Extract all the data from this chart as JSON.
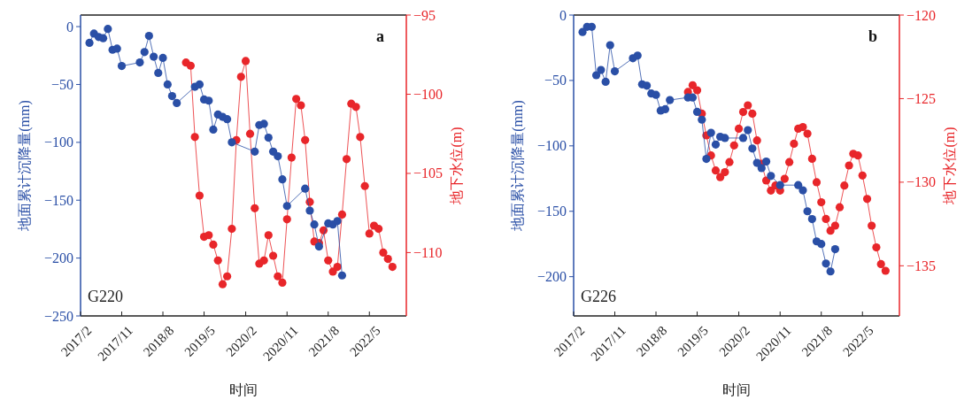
{
  "chart_data": [
    {
      "type": "line",
      "xlabel": "时间",
      "ylabel": "地面累计沉降量(mm)",
      "y2label": "地下水位(m)",
      "annotations": [
        "a",
        "G220"
      ],
      "marker": "circle",
      "line_style": "solid",
      "xlim": [
        "2017-02",
        "2023-01"
      ],
      "xticks": [
        {
          "value": "2017-02",
          "label": "2017/2"
        },
        {
          "value": "2017-11",
          "label": "2017/11"
        },
        {
          "value": "2018-08",
          "label": "2018/8"
        },
        {
          "value": "2019-05",
          "label": "2019/5"
        },
        {
          "value": "2020-02",
          "label": "2020/2"
        },
        {
          "value": "2020-11",
          "label": "2020/11"
        },
        {
          "value": "2021-08",
          "label": "2021/8"
        },
        {
          "value": "2022-05",
          "label": "2022/5"
        }
      ],
      "ylim": [
        -250,
        10
      ],
      "yticks": [
        -250,
        -200,
        -150,
        -100,
        -50,
        0
      ],
      "y2lim": [
        -114,
        -95
      ],
      "y2ticks": [
        -110,
        -105,
        -100,
        -95
      ],
      "series": [
        {
          "color": "#2a4fa6",
          "x": [
            "2017-04",
            "2017-05",
            "2017-06",
            "2017-07",
            "2017-08",
            "2017-09",
            "2017-10",
            "2017-11",
            "2018-03",
            "2018-04",
            "2018-05",
            "2018-06",
            "2018-07",
            "2018-08",
            "2018-09",
            "2018-10",
            "2018-11",
            "2019-03",
            "2019-04",
            "2019-05",
            "2019-06",
            "2019-07",
            "2019-08",
            "2019-09",
            "2019-10",
            "2019-11",
            "2020-04",
            "2020-05",
            "2020-06",
            "2020-07",
            "2020-08",
            "2020-09",
            "2020-10",
            "2020-11",
            "2021-03",
            "2021-04",
            "2021-05",
            "2021-06",
            "2021-08",
            "2021-09",
            "2021-10",
            "2021-11"
          ],
          "values": [
            -14,
            -6,
            -9,
            -10,
            -2,
            -20,
            -19,
            -34,
            -31,
            -22,
            -8,
            -26,
            -40,
            -27,
            -50,
            -60,
            -66,
            -52,
            -50,
            -63,
            -64,
            -89,
            -76,
            -78,
            -80,
            -100,
            -108,
            -85,
            -84,
            -96,
            -108,
            -112,
            -132,
            -155,
            -140,
            -159,
            -171,
            -190,
            -170,
            -171,
            -168,
            -215
          ]
        },
        {
          "color": "#e8262a",
          "axis": "y2",
          "x": [
            "2019-01",
            "2019-02",
            "2019-03",
            "2019-04",
            "2019-05",
            "2019-06",
            "2019-07",
            "2019-08",
            "2019-09",
            "2019-10",
            "2019-11",
            "2019-12",
            "2020-01",
            "2020-02",
            "2020-03",
            "2020-04",
            "2020-05",
            "2020-06",
            "2020-07",
            "2020-08",
            "2020-09",
            "2020-10",
            "2020-11",
            "2020-12",
            "2021-01",
            "2021-02",
            "2021-03",
            "2021-04",
            "2021-05",
            "2021-06",
            "2021-07",
            "2021-08",
            "2021-09",
            "2021-10",
            "2021-11",
            "2021-12",
            "2022-01",
            "2022-02",
            "2022-03",
            "2022-04",
            "2022-05",
            "2022-06",
            "2022-07",
            "2022-08",
            "2022-09",
            "2022-10"
          ],
          "values": [
            -98.0,
            -98.2,
            -102.7,
            -106.4,
            -109.0,
            -108.9,
            -109.5,
            -110.5,
            -112.0,
            -111.5,
            -108.5,
            -102.9,
            -98.9,
            -97.9,
            -102.5,
            -107.2,
            -110.7,
            -110.5,
            -108.9,
            -110.2,
            -111.5,
            -111.9,
            -107.9,
            -104.0,
            -100.3,
            -100.7,
            -102.9,
            -106.8,
            -109.3,
            -109.4,
            -108.6,
            -110.5,
            -111.2,
            -110.9,
            -107.6,
            -104.1,
            -100.6,
            -100.8,
            -102.7,
            -105.8,
            -108.8,
            -108.3,
            -108.5,
            -110.0,
            -110.4,
            -110.9
          ]
        }
      ]
    },
    {
      "type": "line",
      "xlabel": "时间",
      "ylabel": "地面累计沉降量(mm)",
      "y2label": "地下水位(m)",
      "annotations": [
        "b",
        "G226"
      ],
      "marker": "circle",
      "line_style": "solid",
      "xlim": [
        "2017-02",
        "2023-01"
      ],
      "xticks": [
        {
          "value": "2017-02",
          "label": "2017/2"
        },
        {
          "value": "2017-11",
          "label": "2017/11"
        },
        {
          "value": "2018-08",
          "label": "2018/8"
        },
        {
          "value": "2019-05",
          "label": "2019/5"
        },
        {
          "value": "2020-02",
          "label": "2020/2"
        },
        {
          "value": "2020-11",
          "label": "2020/11"
        },
        {
          "value": "2021-08",
          "label": "2021/8"
        },
        {
          "value": "2022-05",
          "label": "2022/5"
        }
      ],
      "ylim": [
        -230,
        0
      ],
      "yticks": [
        -200,
        -150,
        -100,
        -50,
        0
      ],
      "y2lim": [
        -138,
        -120
      ],
      "y2ticks": [
        -135,
        -130,
        -125,
        -120
      ],
      "series": [
        {
          "color": "#2a4fa6",
          "x": [
            "2017-04",
            "2017-05",
            "2017-06",
            "2017-07",
            "2017-08",
            "2017-09",
            "2017-10",
            "2017-11",
            "2018-03",
            "2018-04",
            "2018-05",
            "2018-06",
            "2018-07",
            "2018-08",
            "2018-09",
            "2018-10",
            "2018-11",
            "2019-03",
            "2019-04",
            "2019-05",
            "2019-06",
            "2019-07",
            "2019-08",
            "2019-09",
            "2019-10",
            "2019-11",
            "2020-03",
            "2020-04",
            "2020-05",
            "2020-06",
            "2020-07",
            "2020-08",
            "2020-09",
            "2020-11",
            "2021-03",
            "2021-04",
            "2021-05",
            "2021-06",
            "2021-07",
            "2021-08",
            "2021-09",
            "2021-10",
            "2021-11"
          ],
          "values": [
            -13,
            -9,
            -9,
            -46,
            -42,
            -51,
            -23,
            -43,
            -33,
            -31,
            -53,
            -54,
            -60,
            -61,
            -73,
            -72,
            -65,
            -63,
            -63,
            -74,
            -80,
            -110,
            -90,
            -99,
            -93,
            -94,
            -94,
            -88,
            -102,
            -113,
            -117,
            -112,
            -123,
            -130,
            -130,
            -134,
            -150,
            -156,
            -173,
            -175,
            -190,
            -196,
            -179
          ]
        },
        {
          "color": "#e8262a",
          "axis": "y2",
          "x": [
            "2019-03",
            "2019-04",
            "2019-05",
            "2019-06",
            "2019-07",
            "2019-08",
            "2019-09",
            "2019-10",
            "2019-11",
            "2019-12",
            "2020-01",
            "2020-02",
            "2020-03",
            "2020-04",
            "2020-05",
            "2020-06",
            "2020-07",
            "2020-08",
            "2020-09",
            "2020-10",
            "2020-11",
            "2020-12",
            "2021-01",
            "2021-02",
            "2021-03",
            "2021-04",
            "2021-05",
            "2021-06",
            "2021-07",
            "2021-08",
            "2021-09",
            "2021-10",
            "2021-11",
            "2021-12",
            "2022-01",
            "2022-02",
            "2022-03",
            "2022-04",
            "2022-05",
            "2022-06",
            "2022-07",
            "2022-08",
            "2022-09",
            "2022-10"
          ],
          "values": [
            -124.6,
            -124.2,
            -124.5,
            -125.9,
            -127.2,
            -128.4,
            -129.3,
            -129.7,
            -129.4,
            -128.8,
            -127.8,
            -126.8,
            -125.8,
            -125.4,
            -125.9,
            -127.5,
            -128.9,
            -129.9,
            -130.5,
            -130.2,
            -130.5,
            -129.8,
            -128.8,
            -127.7,
            -126.8,
            -126.7,
            -127.1,
            -128.6,
            -130.0,
            -131.2,
            -132.2,
            -132.9,
            -132.6,
            -131.5,
            -130.2,
            -129.0,
            -128.3,
            -128.4,
            -129.6,
            -131.0,
            -132.6,
            -133.9,
            -134.9,
            -135.3
          ]
        }
      ]
    }
  ]
}
